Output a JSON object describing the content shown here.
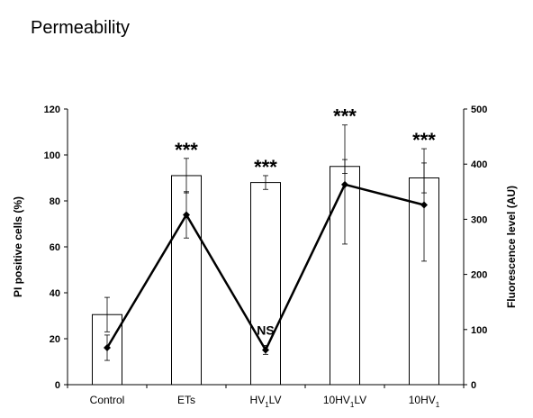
{
  "page": {
    "title": "Permeability"
  },
  "chart_data": {
    "type": "bar",
    "categories": [
      {
        "main": "Control",
        "sub": "",
        "tail": ""
      },
      {
        "main": "ETs",
        "sub": "",
        "tail": ""
      },
      {
        "main": "HV",
        "sub": "1",
        "tail": "LV"
      },
      {
        "main": "10HV",
        "sub": "1",
        "tail": "LV"
      },
      {
        "main": "10HV",
        "sub": "1",
        "tail": ""
      }
    ],
    "series": [
      {
        "kind": "bar",
        "axis": "left",
        "values": [
          30.5,
          91,
          88,
          95,
          90
        ],
        "errors": [
          7.5,
          7.5,
          3,
          3,
          6.5
        ]
      },
      {
        "kind": "line",
        "axis": "right",
        "values": [
          67,
          308,
          63,
          363,
          326
        ],
        "errors": [
          23,
          42,
          8,
          108,
          102
        ]
      }
    ],
    "annotations": [
      "",
      "***",
      "***",
      "***",
      "***"
    ],
    "line_annotations": [
      "",
      "",
      "NS",
      "",
      ""
    ],
    "ylabel_left": "PI positive cells (%)",
    "ylabel_right": "Fluorescence level (AU)",
    "ylim_left": [
      0,
      120
    ],
    "yticks_left": [
      0,
      20,
      40,
      60,
      80,
      100,
      120
    ],
    "ylim_right": [
      0,
      500
    ],
    "yticks_right": [
      0,
      100,
      200,
      300,
      400,
      500
    ],
    "grid": false,
    "colors": {
      "bar_fill": "#ffffff",
      "stroke": "#000000"
    }
  }
}
